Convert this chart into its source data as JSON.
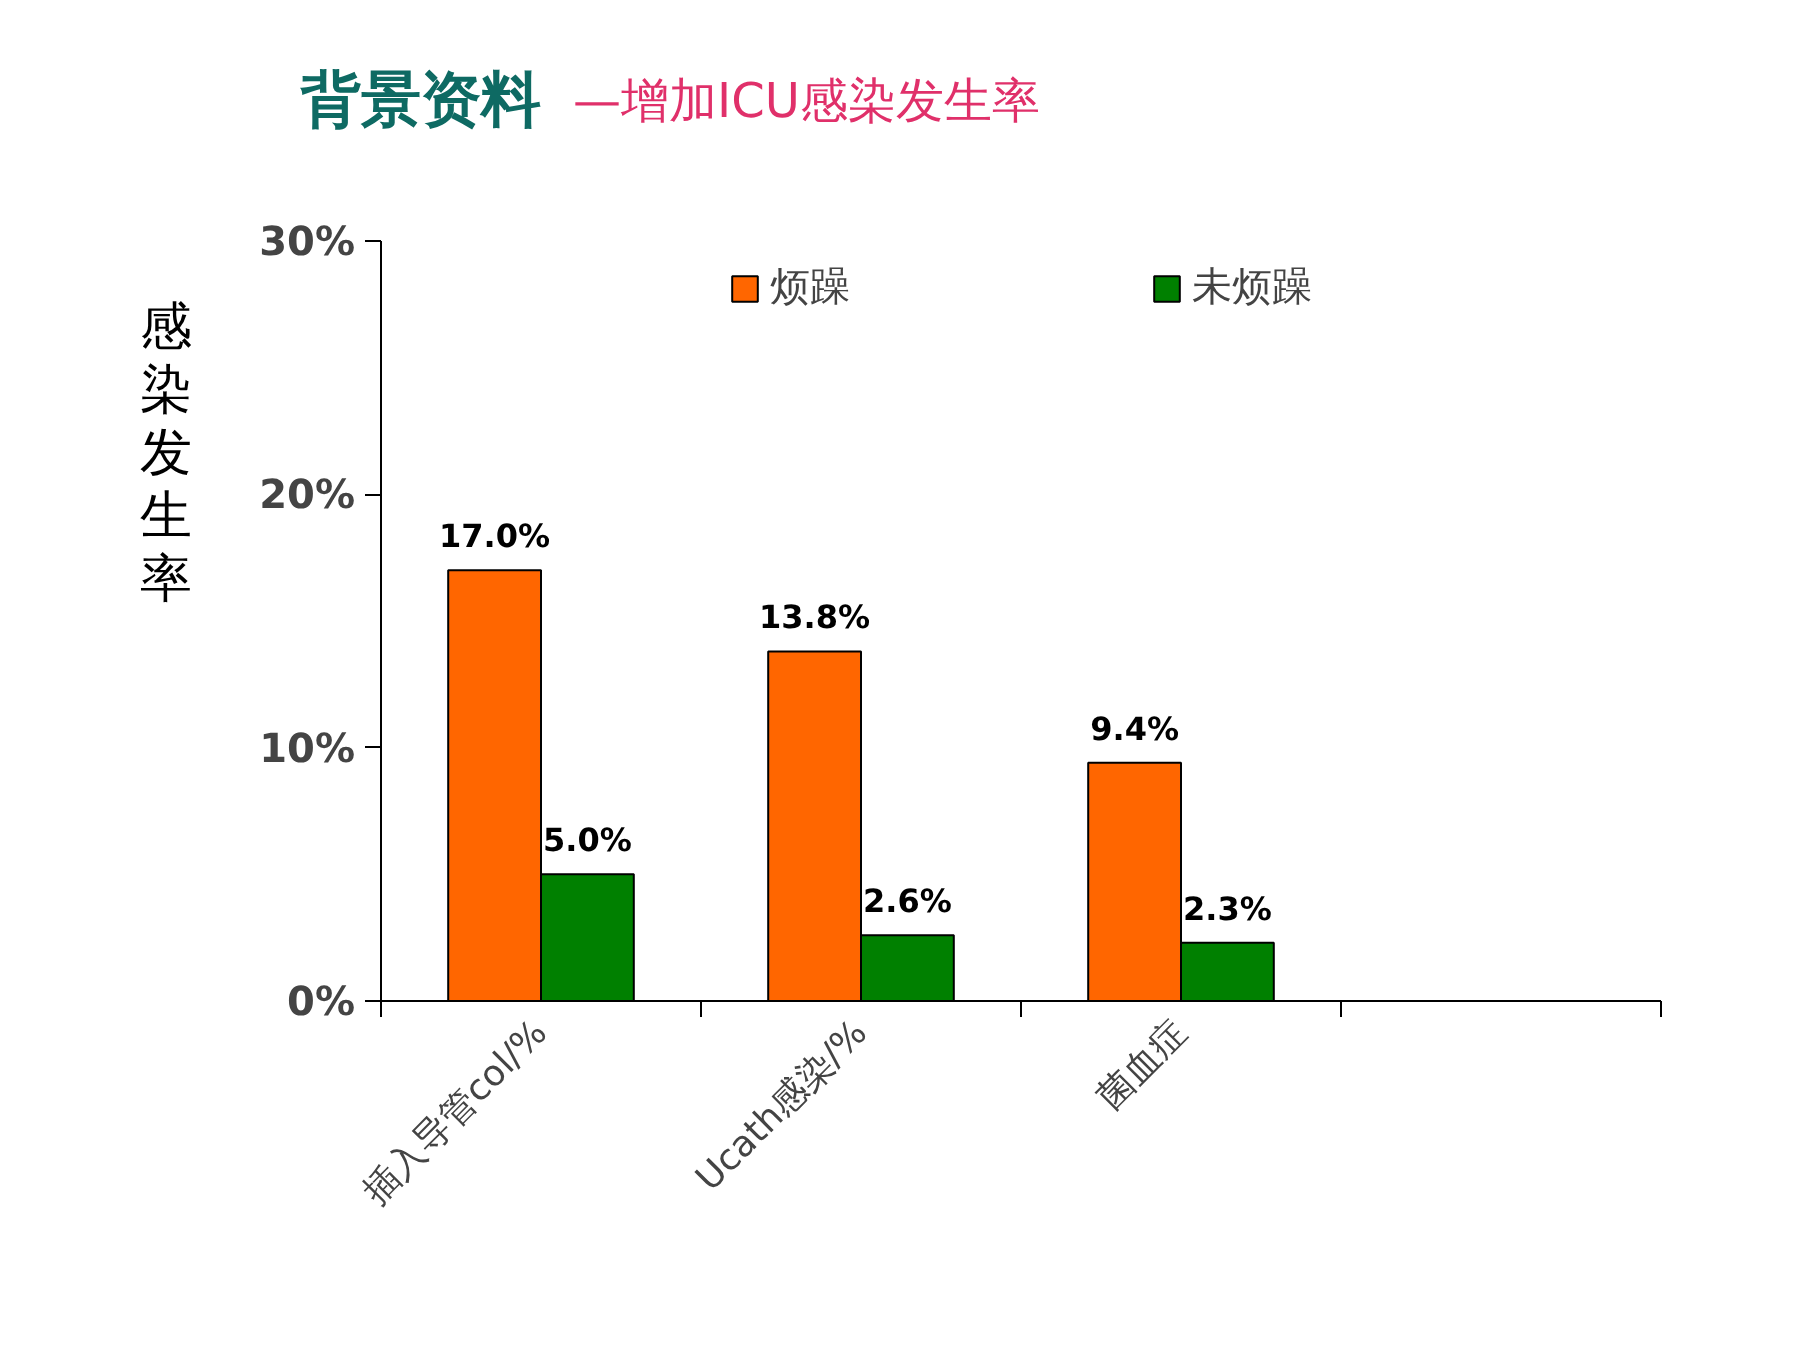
{
  "chart_data": {
    "type": "bar",
    "title": "背景资料",
    "subtitle": "—增加ICU感染发生率",
    "ylabel": "感染发生率",
    "categories": [
      "插入导管col/%",
      "Ucath感染/%",
      "菌血症",
      null
    ],
    "series": [
      {
        "name": "烦躁",
        "color": "#ff6600",
        "values": [
          17.0,
          13.8,
          9.4,
          null
        ],
        "value_labels": [
          "17.0%",
          "13.8%",
          "9.4%",
          null
        ]
      },
      {
        "name": "未烦躁",
        "color": "#008000",
        "values": [
          5.0,
          2.6,
          2.3,
          null
        ],
        "value_labels": [
          "5.0%",
          "2.6%",
          "2.3%",
          null
        ]
      }
    ],
    "ylim": [
      0,
      30
    ],
    "yticks": [
      {
        "value": 0,
        "label": "0%"
      },
      {
        "value": 10,
        "label": "10%"
      },
      {
        "value": 20,
        "label": "20%"
      },
      {
        "value": 30,
        "label": "30%"
      }
    ],
    "grid": false,
    "legend": "top"
  }
}
